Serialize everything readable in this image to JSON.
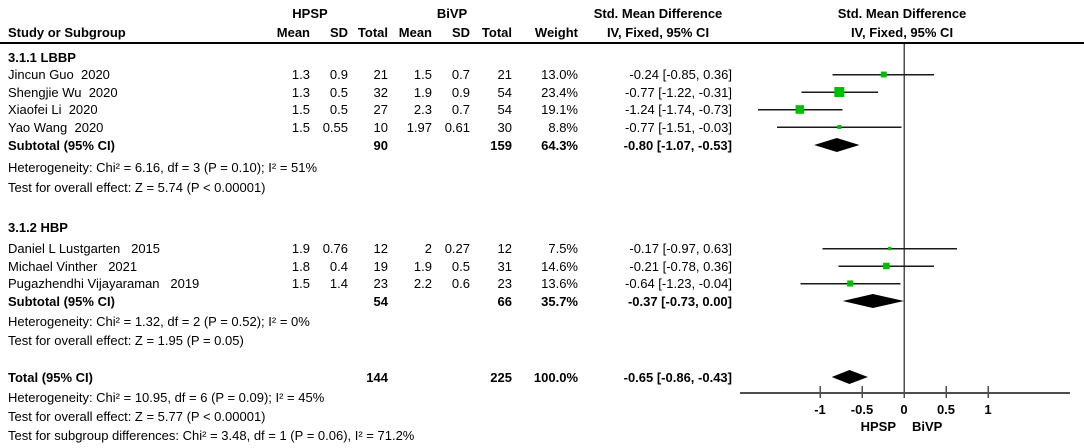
{
  "header": {
    "col_study": "Study or Subgroup",
    "group1": "HPSP",
    "group2": "BiVP",
    "col_mean": "Mean",
    "col_sd": "SD",
    "col_total": "Total",
    "col_weight": "Weight",
    "smd_title": "Std. Mean Difference",
    "smd_sub": "IV, Fixed, 95% CI"
  },
  "axis": {
    "ticks": [
      -1,
      -0.5,
      0,
      0.5,
      1
    ],
    "tick_labels": [
      "-1",
      "-0.5",
      "0",
      "0.5",
      "1"
    ],
    "min": -1.95,
    "max": 1.98,
    "left_label": "HPSP",
    "right_label": "BiVP"
  },
  "colors": {
    "marker": "#00bf00",
    "ci_line": "#1a1a1a",
    "axis": "#4d4d4d",
    "diamond": "#000000",
    "text": "#000000"
  },
  "table": {
    "rows": [
      {
        "type": "section",
        "label": "3.1.1 LBBP"
      },
      {
        "type": "study",
        "name": "Jincun Guo  2020",
        "m1": "1.3",
        "s1": "0.9",
        "t1": "21",
        "m2": "1.5",
        "s2": "0.7",
        "t2": "21",
        "w": "13.0%",
        "ci": "-0.24 [-0.85, 0.36]",
        "est": -0.24,
        "lo": -0.85,
        "hi": 0.36,
        "wv": 13.0
      },
      {
        "type": "study",
        "name": "Shengjie Wu  2020",
        "m1": "1.3",
        "s1": "0.5",
        "t1": "32",
        "m2": "1.9",
        "s2": "0.9",
        "t2": "54",
        "w": "23.4%",
        "ci": "-0.77 [-1.22, -0.31]",
        "est": -0.77,
        "lo": -1.22,
        "hi": -0.31,
        "wv": 23.4
      },
      {
        "type": "study",
        "name": "Xiaofei Li  2020",
        "m1": "1.5",
        "s1": "0.5",
        "t1": "27",
        "m2": "2.3",
        "s2": "0.7",
        "t2": "54",
        "w": "19.1%",
        "ci": "-1.24 [-1.74, -0.73]",
        "est": -1.24,
        "lo": -1.74,
        "hi": -0.73,
        "wv": 19.1
      },
      {
        "type": "study",
        "name": "Yao Wang  2020",
        "m1": "1.5",
        "s1": "0.55",
        "t1": "10",
        "m2": "1.97",
        "s2": "0.61",
        "t2": "30",
        "w": "8.8%",
        "ci": "-0.77 [-1.51, -0.03]",
        "est": -0.77,
        "lo": -1.51,
        "hi": -0.03,
        "wv": 8.8
      },
      {
        "type": "subtotal",
        "name": "Subtotal (95% CI)",
        "t1": "90",
        "t2": "159",
        "w": "64.3%",
        "ci": "-0.80 [-1.07, -0.53]",
        "est": -0.8,
        "lo": -1.07,
        "hi": -0.53
      },
      {
        "type": "note",
        "text": "Heterogeneity: Chi² = 6.16, df = 3 (P = 0.10); I² = 51%"
      },
      {
        "type": "note",
        "text": "Test for overall effect: Z = 5.74 (P < 0.00001)"
      },
      {
        "type": "section",
        "label": "3.1.2 HBP"
      },
      {
        "type": "study",
        "name": "Daniel L Lustgarten   2015",
        "m1": "1.9",
        "s1": "0.76",
        "t1": "12",
        "m2": "2",
        "s2": "0.27",
        "t2": "12",
        "w": "7.5%",
        "ci": "-0.17 [-0.97, 0.63]",
        "est": -0.17,
        "lo": -0.97,
        "hi": 0.63,
        "wv": 7.5
      },
      {
        "type": "study",
        "name": "Michael Vinther   2021",
        "m1": "1.8",
        "s1": "0.4",
        "t1": "19",
        "m2": "1.9",
        "s2": "0.5",
        "t2": "31",
        "w": "14.6%",
        "ci": "-0.21 [-0.78, 0.36]",
        "est": -0.21,
        "lo": -0.78,
        "hi": 0.36,
        "wv": 14.6
      },
      {
        "type": "study",
        "name": "Pugazhendhi Vijayaraman   2019",
        "m1": "1.5",
        "s1": "1.4",
        "t1": "23",
        "m2": "2.2",
        "s2": "0.6",
        "t2": "23",
        "w": "13.6%",
        "ci": "-0.64 [-1.23, -0.04]",
        "est": -0.64,
        "lo": -1.23,
        "hi": -0.04,
        "wv": 13.6
      },
      {
        "type": "subtotal",
        "name": "Subtotal (95% CI)",
        "t1": "54",
        "t2": "66",
        "w": "35.7%",
        "ci": "-0.37 [-0.73, 0.00]",
        "est": -0.37,
        "lo": -0.73,
        "hi": 0.0
      },
      {
        "type": "note",
        "text": "Heterogeneity: Chi² = 1.32, df = 2 (P = 0.52); I² = 0%"
      },
      {
        "type": "note",
        "text": "Test for overall effect: Z = 1.95 (P = 0.05)"
      },
      {
        "type": "total",
        "name": "Total (95% CI)",
        "t1": "144",
        "t2": "225",
        "w": "100.0%",
        "ci": "-0.65 [-0.86, -0.43]",
        "est": -0.65,
        "lo": -0.86,
        "hi": -0.43
      },
      {
        "type": "note",
        "text": "Heterogeneity: Chi² = 10.95, df = 6 (P = 0.09); I² = 45%"
      },
      {
        "type": "note",
        "text": "Test for overall effect: Z = 5.77 (P < 0.00001)"
      },
      {
        "type": "note",
        "text": "Test for subgroup differences: Chi² = 3.48, df = 1 (P = 0.06), I² = 71.2%"
      }
    ]
  },
  "chart_data": {
    "type": "forest",
    "title": "",
    "effect_measure": "Std. Mean Difference",
    "method": "IV, Fixed, 95% CI",
    "x_ticks": [
      -1,
      -0.5,
      0,
      0.5,
      1
    ],
    "xlim": [
      -1.95,
      1.98
    ],
    "favours_left": "HPSP",
    "favours_right": "BiVP",
    "subgroups": [
      {
        "label": "3.1.1 LBBP",
        "studies": [
          {
            "name": "Jincun Guo 2020",
            "hpsp_mean": 1.3,
            "hpsp_sd": 0.9,
            "hpsp_total": 21,
            "bivp_mean": 1.5,
            "bivp_sd": 0.7,
            "bivp_total": 21,
            "weight_pct": 13.0,
            "smd": -0.24,
            "ci_low": -0.85,
            "ci_high": 0.36
          },
          {
            "name": "Shengjie Wu 2020",
            "hpsp_mean": 1.3,
            "hpsp_sd": 0.5,
            "hpsp_total": 32,
            "bivp_mean": 1.9,
            "bivp_sd": 0.9,
            "bivp_total": 54,
            "weight_pct": 23.4,
            "smd": -0.77,
            "ci_low": -1.22,
            "ci_high": -0.31
          },
          {
            "name": "Xiaofei Li 2020",
            "hpsp_mean": 1.5,
            "hpsp_sd": 0.5,
            "hpsp_total": 27,
            "bivp_mean": 2.3,
            "bivp_sd": 0.7,
            "bivp_total": 54,
            "weight_pct": 19.1,
            "smd": -1.24,
            "ci_low": -1.74,
            "ci_high": -0.73
          },
          {
            "name": "Yao Wang 2020",
            "hpsp_mean": 1.5,
            "hpsp_sd": 0.55,
            "hpsp_total": 10,
            "bivp_mean": 1.97,
            "bivp_sd": 0.61,
            "bivp_total": 30,
            "weight_pct": 8.8,
            "smd": -0.77,
            "ci_low": -1.51,
            "ci_high": -0.03
          }
        ],
        "subtotal": {
          "hpsp_total": 90,
          "bivp_total": 159,
          "weight_pct": 64.3,
          "smd": -0.8,
          "ci_low": -1.07,
          "ci_high": -0.53
        },
        "heterogeneity": "Chi² = 6.16, df = 3 (P = 0.10); I² = 51%",
        "overall_effect": "Z = 5.74 (P < 0.00001)"
      },
      {
        "label": "3.1.2 HBP",
        "studies": [
          {
            "name": "Daniel L Lustgarten 2015",
            "hpsp_mean": 1.9,
            "hpsp_sd": 0.76,
            "hpsp_total": 12,
            "bivp_mean": 2,
            "bivp_sd": 0.27,
            "bivp_total": 12,
            "weight_pct": 7.5,
            "smd": -0.17,
            "ci_low": -0.97,
            "ci_high": 0.63
          },
          {
            "name": "Michael Vinther 2021",
            "hpsp_mean": 1.8,
            "hpsp_sd": 0.4,
            "hpsp_total": 19,
            "bivp_mean": 1.9,
            "bivp_sd": 0.5,
            "bivp_total": 31,
            "weight_pct": 14.6,
            "smd": -0.21,
            "ci_low": -0.78,
            "ci_high": 0.36
          },
          {
            "name": "Pugazhendhi Vijayaraman 2019",
            "hpsp_mean": 1.5,
            "hpsp_sd": 1.4,
            "hpsp_total": 23,
            "bivp_mean": 2.2,
            "bivp_sd": 0.6,
            "bivp_total": 23,
            "weight_pct": 13.6,
            "smd": -0.64,
            "ci_low": -1.23,
            "ci_high": -0.04
          }
        ],
        "subtotal": {
          "hpsp_total": 54,
          "bivp_total": 66,
          "weight_pct": 35.7,
          "smd": -0.37,
          "ci_low": -0.73,
          "ci_high": 0.0
        },
        "heterogeneity": "Chi² = 1.32, df = 2 (P = 0.52); I² = 0%",
        "overall_effect": "Z = 1.95 (P = 0.05)"
      }
    ],
    "total": {
      "hpsp_total": 144,
      "bivp_total": 225,
      "weight_pct": 100.0,
      "smd": -0.65,
      "ci_low": -0.86,
      "ci_high": -0.43,
      "heterogeneity": "Chi² = 10.95, df = 6 (P = 0.09); I² = 45%",
      "overall_effect": "Z = 5.77 (P < 0.00001)",
      "subgroup_differences": "Chi² = 3.48, df = 1 (P = 0.06), I² = 71.2%"
    }
  }
}
